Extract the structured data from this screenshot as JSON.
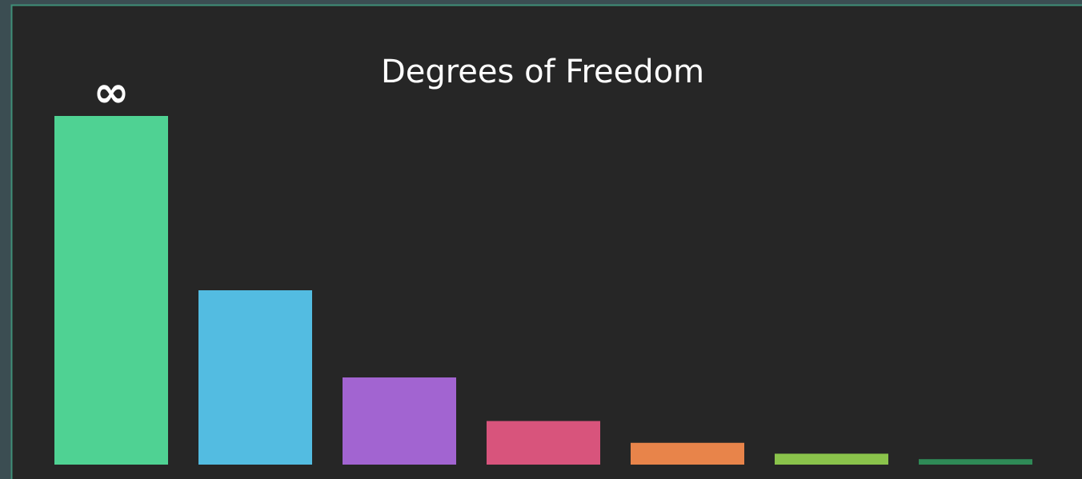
{
  "chart_data": {
    "type": "bar",
    "title": "Degrees of Freedom",
    "annotation": "∞",
    "categories": [
      null,
      null,
      null,
      null,
      null,
      null,
      null
    ],
    "values": [
      64,
      32,
      16,
      8,
      4,
      2,
      1
    ],
    "colors": [
      "#4fd293",
      "#53bce1",
      "#a264d1",
      "#d8547c",
      "#e8844a",
      "#8ac34b",
      "#2f8a57"
    ],
    "ylim": [
      0,
      64
    ]
  }
}
